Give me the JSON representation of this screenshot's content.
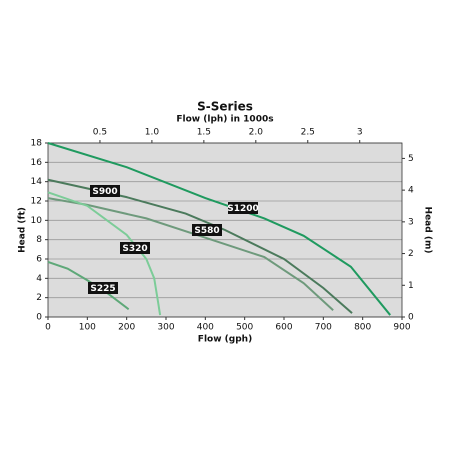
{
  "chart_data": {
    "type": "line",
    "title": "S-Series",
    "x_label": "Flow (gph)",
    "x2_label": "Flow (lph) in 1000s",
    "y_label": "Head (ft)",
    "y2_label": "Head (m)",
    "xlim": [
      0,
      900
    ],
    "xticks": [
      0,
      100,
      200,
      300,
      400,
      500,
      600,
      700,
      800,
      900
    ],
    "x2lim": [
      0,
      3.407
    ],
    "x2ticks": [
      0.5,
      {
        "value": 1,
        "label": "1.0"
      },
      1.5,
      {
        "value": 2,
        "label": "2.0"
      },
      2.5,
      3
    ],
    "ylim": [
      0,
      18
    ],
    "yticks": [
      0,
      2,
      4,
      6,
      8,
      10,
      12,
      14,
      16,
      18
    ],
    "y2lim": [
      0,
      5.486
    ],
    "y2ticks": [
      0,
      1,
      2,
      3,
      4,
      5
    ],
    "grid": true,
    "series": [
      {
        "name": "S1200",
        "color": "#1f9a5f",
        "x": [
          0,
          200,
          400,
          550,
          650,
          770,
          870
        ],
        "values": [
          18,
          15.5,
          12.3,
          10.2,
          8.4,
          5.2,
          0.2
        ]
      },
      {
        "name": "S900",
        "color": "#4b7a5c",
        "x": [
          0,
          200,
          350,
          450,
          600,
          700,
          773
        ],
        "values": [
          14.2,
          12.4,
          10.7,
          9.0,
          6.0,
          3.0,
          0.4
        ]
      },
      {
        "name": "S580",
        "color": "#6e9a7c",
        "x": [
          0,
          100,
          250,
          400,
          550,
          650,
          725
        ],
        "values": [
          12.3,
          11.6,
          10.2,
          8.2,
          6.2,
          3.5,
          0.7
        ]
      },
      {
        "name": "S320",
        "color": "#7ccc98",
        "x": [
          0,
          100,
          200,
          250,
          270,
          280,
          285
        ],
        "values": [
          12.9,
          11.5,
          8.5,
          6.0,
          4.0,
          1.5,
          0.2
        ]
      },
      {
        "name": "S225",
        "color": "#5ea878",
        "x": [
          0,
          50,
          100,
          150,
          205
        ],
        "values": [
          5.7,
          5.0,
          3.8,
          2.5,
          0.8
        ]
      }
    ]
  }
}
